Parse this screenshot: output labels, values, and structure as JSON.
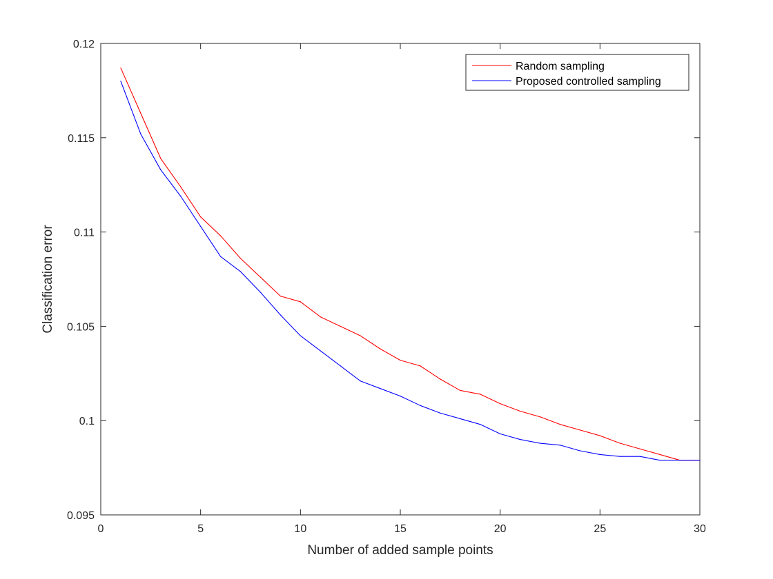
{
  "chart_data": {
    "type": "line",
    "title": "",
    "xlabel": "Number of added sample points",
    "ylabel": "Classification error",
    "xlim": [
      0,
      30
    ],
    "ylim": [
      0.095,
      0.12
    ],
    "xticks": [
      0,
      5,
      10,
      15,
      20,
      25,
      30
    ],
    "xtick_labels": [
      "0",
      "5",
      "10",
      "15",
      "20",
      "25",
      "30"
    ],
    "yticks": [
      0.095,
      0.1,
      0.105,
      0.11,
      0.115,
      0.12
    ],
    "ytick_labels": [
      "0.095",
      "0.1",
      "0.105",
      "0.11",
      "0.115",
      "0.12"
    ],
    "grid": false,
    "legend_position": "top-right",
    "x": [
      1,
      2,
      3,
      4,
      5,
      6,
      7,
      8,
      9,
      10,
      11,
      12,
      13,
      14,
      15,
      16,
      17,
      18,
      19,
      20,
      21,
      22,
      23,
      24,
      25,
      26,
      27,
      28,
      29,
      30
    ],
    "series": [
      {
        "name": "Random sampling",
        "color": "#ff0000",
        "values": [
          0.1187,
          0.1163,
          0.1139,
          0.1124,
          0.1108,
          0.1098,
          0.1086,
          0.1076,
          0.1066,
          0.1063,
          0.1055,
          0.105,
          0.1045,
          0.1038,
          0.1032,
          0.1029,
          0.1022,
          0.1016,
          0.1014,
          0.1009,
          0.1005,
          0.1002,
          0.0998,
          0.0995,
          0.0992,
          0.0988,
          0.0985,
          0.0982,
          0.0979,
          0.0979
        ]
      },
      {
        "name": "Proposed controlled sampling",
        "color": "#0000ff",
        "values": [
          0.118,
          0.1152,
          0.1133,
          0.1119,
          0.1103,
          0.1087,
          0.1079,
          0.1068,
          0.1056,
          0.1045,
          0.1037,
          0.1029,
          0.1021,
          0.1017,
          0.1013,
          0.1008,
          0.1004,
          0.1001,
          0.0998,
          0.0993,
          0.099,
          0.0988,
          0.0987,
          0.0984,
          0.0982,
          0.0981,
          0.0981,
          0.0979,
          0.0979,
          0.0979
        ]
      }
    ]
  }
}
